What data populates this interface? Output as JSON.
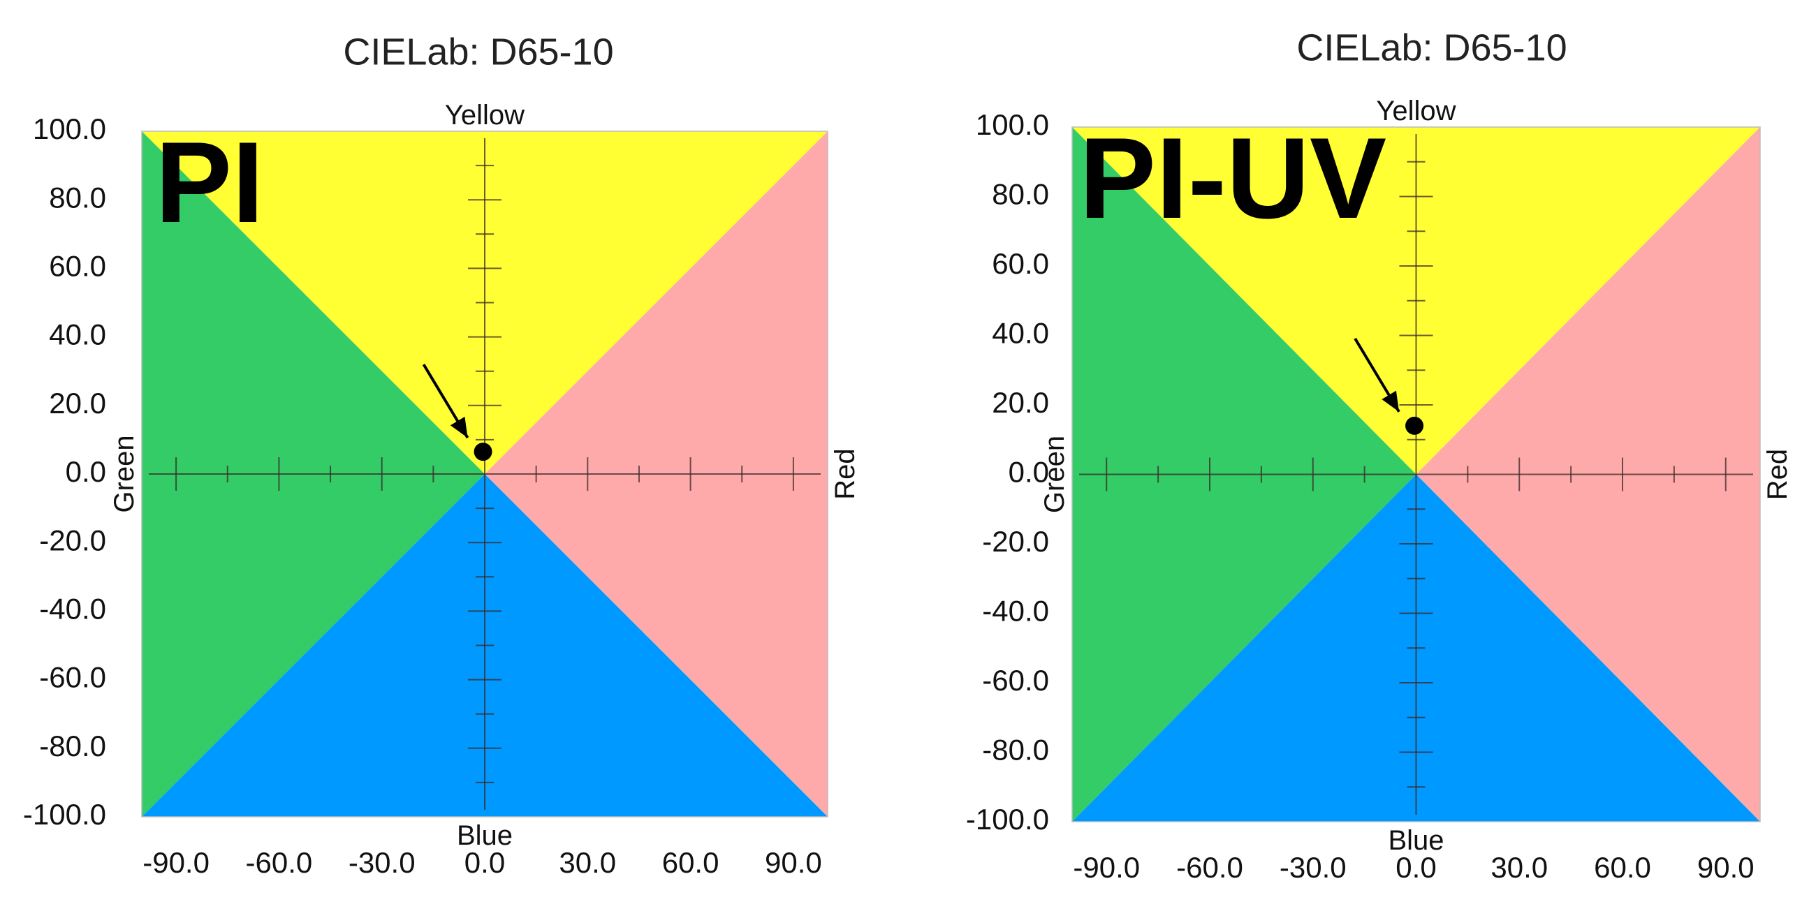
{
  "chart_data": [
    {
      "type": "scatter",
      "title": "CIELab: D65-10",
      "panel_label": "PI",
      "xlabel": "",
      "ylabel": "",
      "xlim": [
        -100,
        100
      ],
      "ylim": [
        -100,
        100
      ],
      "x_ticks": [
        "-90.0",
        "-60.0",
        "-30.0",
        "0.0",
        "30.0",
        "60.0",
        "90.0"
      ],
      "y_ticks": [
        "100.0",
        "80.0",
        "60.0",
        "40.0",
        "20.0",
        "0.0",
        "-20.0",
        "-40.0",
        "-60.0",
        "-80.0",
        "-100.0"
      ],
      "directions": {
        "top": "Yellow",
        "bottom": "Blue",
        "left": "Green",
        "right": "Red"
      },
      "region_colors": {
        "yellow": "#FFFF33",
        "red": "#FFAAAA",
        "blue": "#0099FF",
        "green": "#33CC66"
      },
      "points": [
        {
          "a": -0.5,
          "b": 6.5
        }
      ]
    },
    {
      "type": "scatter",
      "title": "CIELab: D65-10",
      "panel_label": "PI-UV",
      "xlabel": "",
      "ylabel": "",
      "xlim": [
        -100,
        100
      ],
      "ylim": [
        -100,
        100
      ],
      "x_ticks": [
        "-90.0",
        "-60.0",
        "-30.0",
        "0.0",
        "30.0",
        "60.0",
        "90.0"
      ],
      "y_ticks": [
        "100.0",
        "80.0",
        "60.0",
        "40.0",
        "20.0",
        "0.0",
        "-20.0",
        "-40.0",
        "-60.0",
        "-80.0",
        "-100.0"
      ],
      "directions": {
        "top": "Yellow",
        "bottom": "Blue",
        "left": "Green",
        "right": "Red"
      },
      "region_colors": {
        "yellow": "#FFFF33",
        "red": "#FFAAAA",
        "blue": "#0099FF",
        "green": "#33CC66"
      },
      "points": [
        {
          "a": -0.5,
          "b": 14.0
        }
      ]
    }
  ]
}
